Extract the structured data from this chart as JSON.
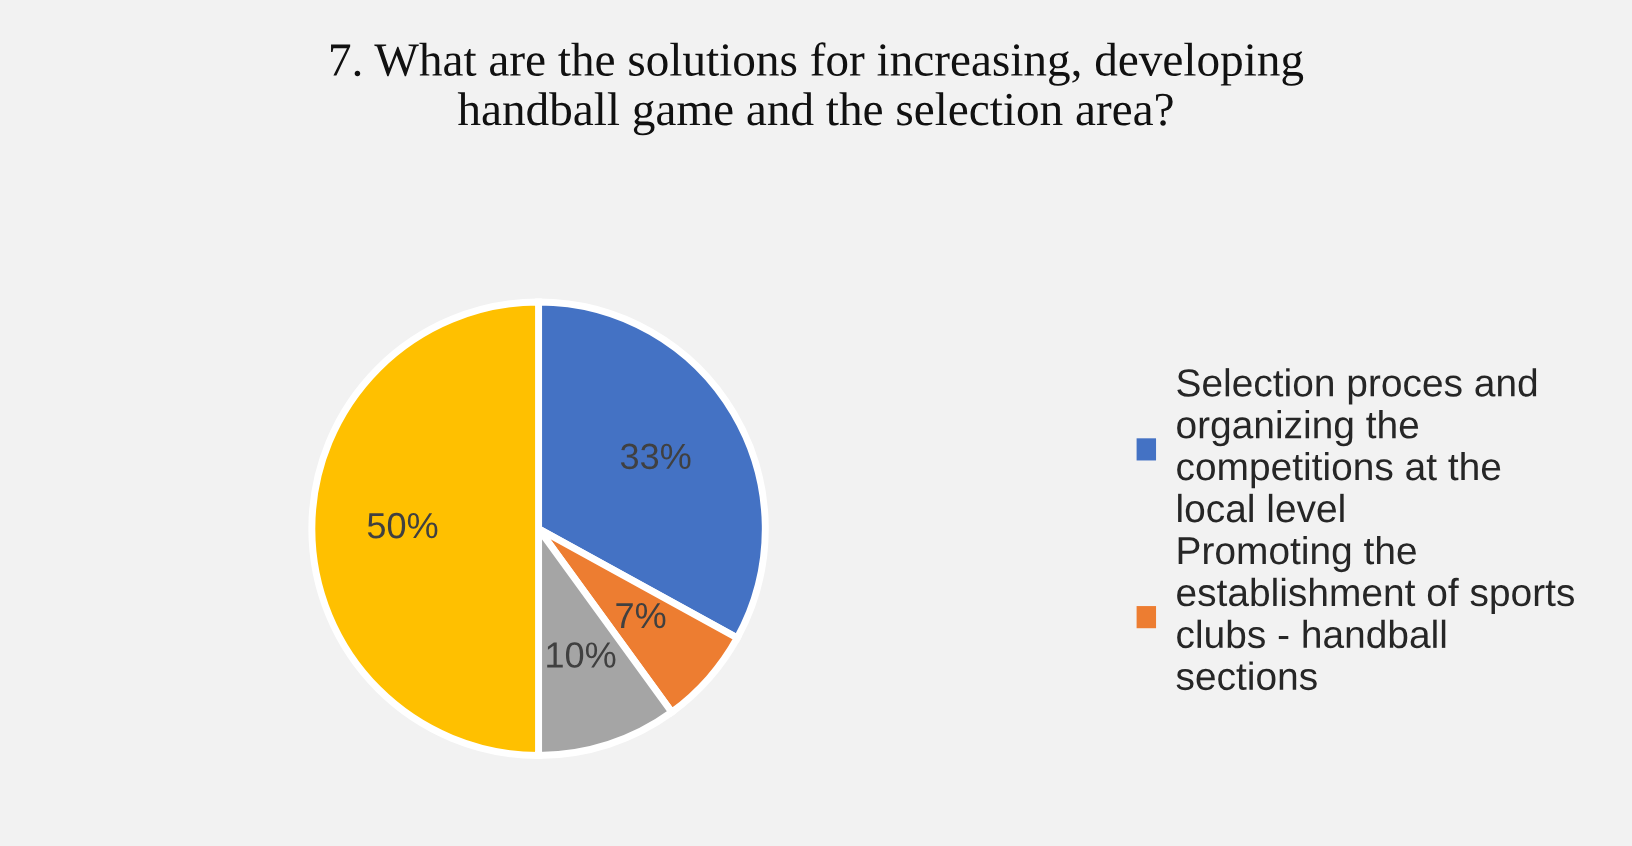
{
  "chart_data": {
    "type": "pie",
    "title": "7. What are the solutions for increasing, developing\nhandball game and the selection area?",
    "categories": [
      "Selection proces and\norganizing the\ncompetitions at the\nlocal level",
      "Promoting the\nestablishment of sports\nclubs - handball\nsections",
      null,
      null
    ],
    "values": [
      33,
      7,
      10,
      50
    ],
    "value_labels": [
      "33%",
      "7%",
      "10%",
      "50%"
    ],
    "colors": [
      "#4472c4",
      "#ed7d31",
      "#a5a5a5",
      "#ffc000"
    ],
    "legend": "right"
  }
}
